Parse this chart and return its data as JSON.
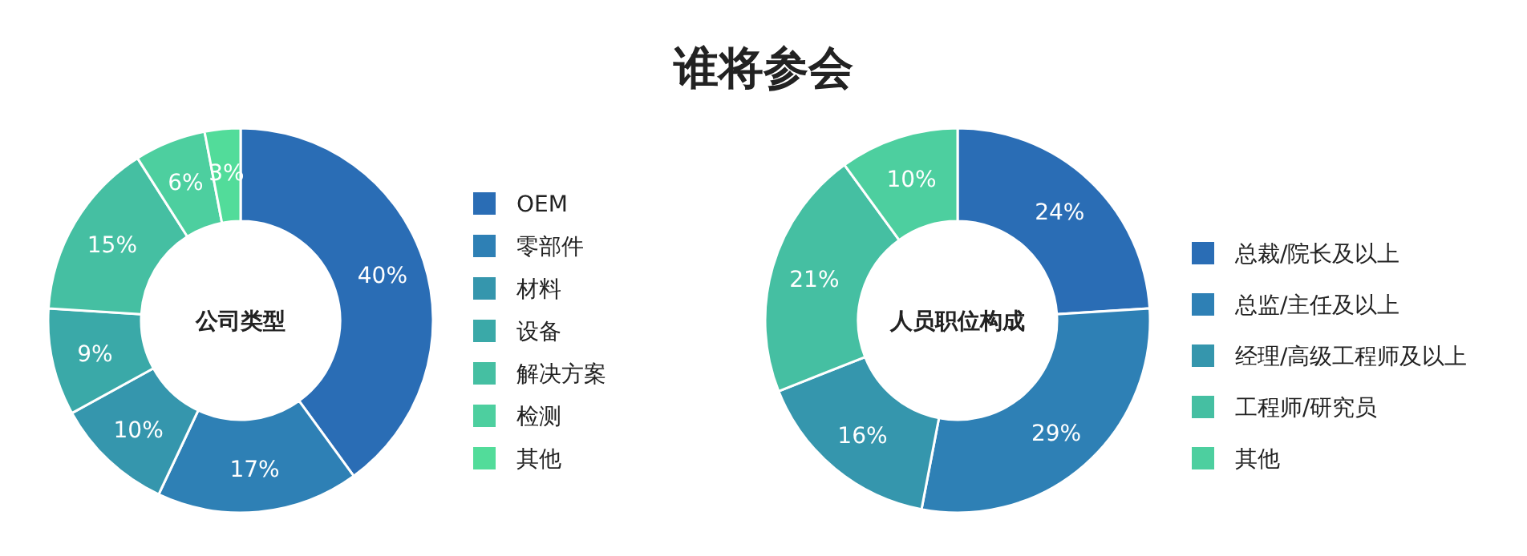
{
  "chart_data": [
    {
      "type": "other",
      "title": "谁将参会"
    },
    {
      "type": "donut",
      "title": "公司类型",
      "categories": [
        "OEM",
        "零部件",
        "材料",
        "设备",
        "解决方案",
        "检测",
        "其他"
      ],
      "values": [
        40,
        17,
        10,
        9,
        15,
        6,
        3
      ],
      "value_labels": [
        "40%",
        "17%",
        "10%",
        "9%",
        "15%",
        "6%",
        "3%"
      ],
      "colors": [
        "#2a6db5",
        "#2e80b5",
        "#3596ad",
        "#3aa9a8",
        "#45bfa2",
        "#4dcf9f",
        "#52dc9a"
      ],
      "legend": "right"
    },
    {
      "type": "donut",
      "title": "人员职位构成",
      "categories": [
        "总裁/院长及以上",
        "总监/主任及以上",
        "经理/高级工程师及以上",
        "工程师/研究员",
        "其他"
      ],
      "values": [
        24,
        29,
        16,
        21,
        10
      ],
      "value_labels": [
        "24%",
        "29%",
        "16%",
        "21%",
        "10%"
      ],
      "colors": [
        "#2a6db5",
        "#2e80b5",
        "#3596ad",
        "#45bfa2",
        "#4dcf9f"
      ],
      "legend": "right"
    }
  ]
}
